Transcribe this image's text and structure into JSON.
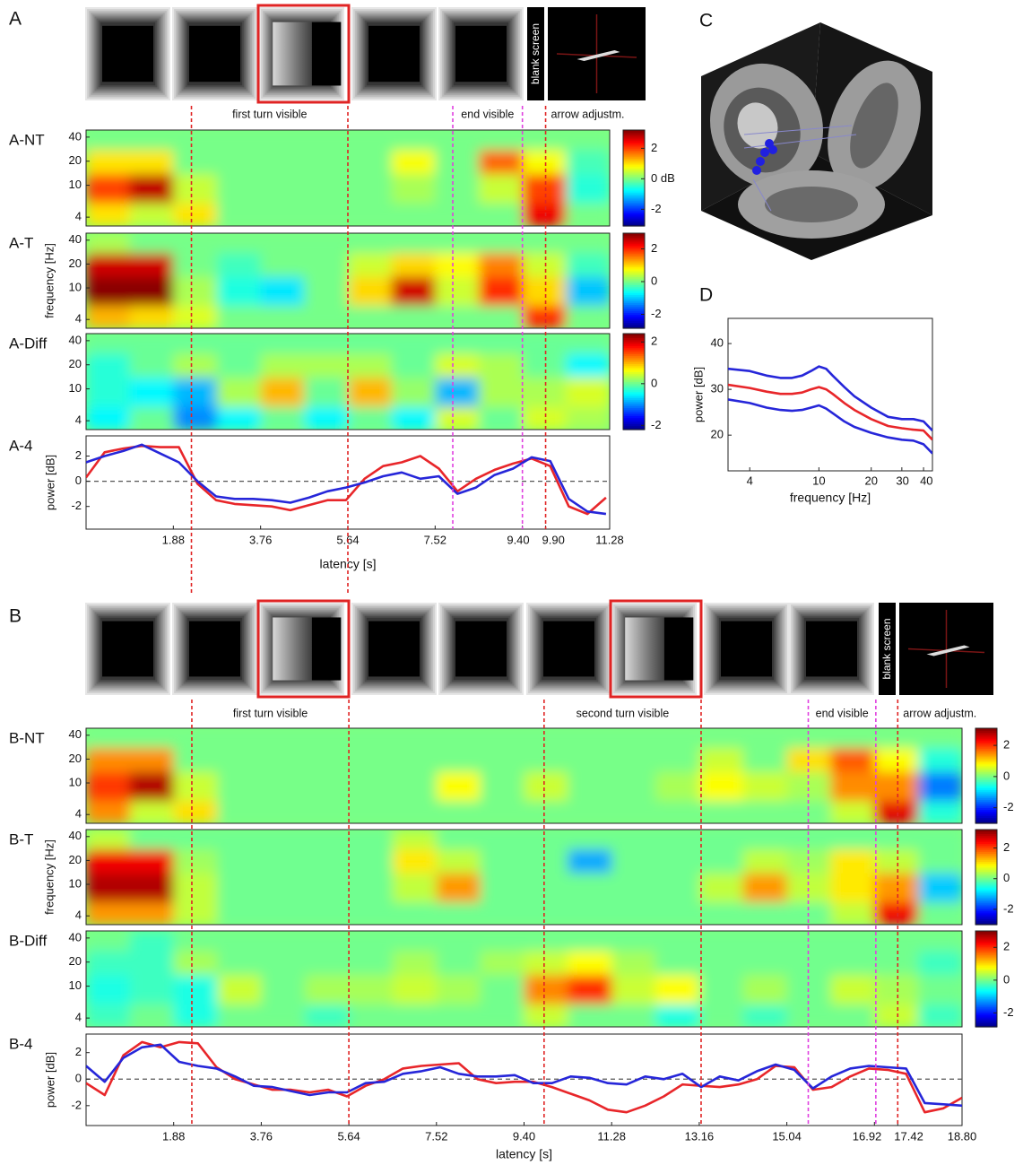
{
  "trials": [
    {
      "label": "A",
      "blank_label": "blank screen",
      "segments": [
        {
          "label": "first turn visible",
          "start": 2.27,
          "end": 5.64,
          "color": "#e02424"
        },
        {
          "label": "end visible",
          "start": 7.9,
          "end": 9.4,
          "color": "#e040e0"
        },
        {
          "label": "arrow adjustm.",
          "start": 9.9,
          "color": "#e02424"
        }
      ]
    },
    {
      "label": "B",
      "blank_label": "blank screen",
      "segments": [
        {
          "label": "first turn visible",
          "start": 2.27,
          "end": 5.64,
          "color": "#e02424"
        },
        {
          "label": "second turn visible",
          "start": 9.83,
          "end": 13.2,
          "color": "#e02424"
        },
        {
          "label": "end visible",
          "start": 15.5,
          "end": 16.95,
          "color": "#e040e0"
        },
        {
          "label": "arrow adjustm.",
          "start": 17.42,
          "color": "#e02424"
        }
      ]
    }
  ],
  "brain": {
    "label": "C"
  },
  "chart_data": [
    {
      "type": "heatmap",
      "label": "A-NT",
      "colormap": "jet",
      "xlim": [
        0,
        11.28
      ],
      "ylim": [
        3.1,
        49
      ],
      "ylog": true,
      "yticks": [
        4,
        10,
        20,
        40
      ],
      "clim": [
        -3.1,
        3.2
      ],
      "cticks": [
        -2,
        {
          "value": 0,
          "label": "0 dB"
        },
        2
      ],
      "x_edges": [
        0,
        0.94,
        1.88,
        2.82,
        3.76,
        4.7,
        5.64,
        6.58,
        7.52,
        8.46,
        9.4,
        10.34,
        11.28
      ],
      "y_edges": [
        3.1,
        6,
        14,
        28,
        49
      ],
      "z": [
        [
          1.0,
          0.5,
          1.0,
          0,
          0,
          0,
          0,
          0,
          0,
          0,
          2.5,
          0
        ],
        [
          2.0,
          2.8,
          0.5,
          0,
          0,
          0,
          0,
          0.3,
          0,
          0.5,
          2.0,
          -0.5
        ],
        [
          1.0,
          1.0,
          0,
          0,
          0,
          0,
          0,
          0.8,
          0,
          1.8,
          0.8,
          -0.3
        ],
        [
          0,
          0,
          0,
          0,
          0,
          0,
          0,
          0,
          0,
          0,
          0,
          0
        ]
      ]
    },
    {
      "type": "heatmap",
      "label": "A-T",
      "ylabel": "frequency [Hz]",
      "colormap": "jet",
      "xlim": [
        0,
        11.28
      ],
      "ylim": [
        3.1,
        49
      ],
      "ylog": true,
      "yticks": [
        4,
        10,
        20,
        40
      ],
      "clim": [
        -2.85,
        2.96
      ],
      "cticks": [
        -2,
        0,
        2
      ],
      "x_edges": [
        0,
        0.94,
        1.88,
        2.82,
        3.76,
        4.7,
        5.64,
        6.58,
        7.52,
        8.46,
        9.4,
        10.34,
        11.28
      ],
      "y_edges": [
        3.1,
        6,
        14,
        28,
        49
      ],
      "z": [
        [
          1.2,
          1.0,
          0.6,
          0,
          0,
          0,
          0,
          0,
          0,
          0,
          2.0,
          0
        ],
        [
          2.9,
          2.9,
          0.3,
          -0.5,
          -0.8,
          0,
          1.0,
          2.5,
          0.5,
          2.0,
          1.0,
          -1.0
        ],
        [
          2.5,
          2.5,
          0,
          -0.3,
          0,
          0,
          0.5,
          1.0,
          0.8,
          1.5,
          0.5,
          -0.3
        ],
        [
          0.3,
          0,
          0,
          0,
          0,
          0,
          0,
          0,
          0,
          0,
          0,
          0
        ]
      ]
    },
    {
      "type": "heatmap",
      "label": "A-Diff",
      "colormap": "jet",
      "xlim": [
        0,
        11.28
      ],
      "ylim": [
        3.1,
        49
      ],
      "ylog": true,
      "yticks": [
        4,
        10,
        20,
        40
      ],
      "clim": [
        -2.2,
        2.4
      ],
      "cticks": [
        -2,
        0,
        2
      ],
      "x_edges": [
        0,
        0.94,
        1.88,
        2.82,
        3.76,
        4.7,
        5.64,
        6.58,
        7.52,
        8.46,
        9.4,
        10.34,
        11.28
      ],
      "y_edges": [
        3.1,
        6,
        14,
        28,
        49
      ],
      "z": [
        [
          -0.5,
          0,
          -1.0,
          -0.5,
          0,
          -0.5,
          0,
          -0.5,
          0.5,
          0,
          0.5,
          0.3
        ],
        [
          -0.3,
          -0.5,
          -0.8,
          0.3,
          1.0,
          0,
          1.0,
          0.2,
          -0.8,
          0.3,
          0.3,
          0.5
        ],
        [
          -0.3,
          0,
          0.3,
          0,
          0.3,
          0.3,
          0.3,
          0,
          0.5,
          0.3,
          0,
          -0.5
        ],
        [
          0,
          0,
          0,
          0,
          0,
          0,
          0,
          0,
          0,
          0,
          0,
          0
        ]
      ]
    },
    {
      "type": "line",
      "label": "A-4",
      "xlabel": "latency [s]",
      "ylabel": "power [dB]",
      "xlim": [
        0,
        11.28
      ],
      "ylim": [
        -3.8,
        3.6
      ],
      "baseline": 0,
      "xticks": [
        1.88,
        3.76,
        5.64,
        7.52,
        {
          "value": 9.4,
          "label": "9.40"
        },
        {
          "value": 9.9,
          "label": "9.90"
        },
        11.28
      ],
      "yticks": [
        -2,
        0,
        2
      ],
      "x": [
        0,
        0.4,
        0.8,
        1.2,
        1.6,
        2,
        2.4,
        2.8,
        3.2,
        3.6,
        4,
        4.4,
        4.8,
        5.2,
        5.6,
        6,
        6.4,
        6.8,
        7.2,
        7.6,
        8,
        8.4,
        8.8,
        9.2,
        9.6,
        10,
        10.4,
        10.8,
        11.2
      ],
      "series": [
        {
          "color": "#e8262a",
          "values": [
            0.3,
            2.3,
            2.6,
            2.8,
            2.7,
            2.7,
            -0.2,
            -1.5,
            -1.8,
            -1.9,
            -2.0,
            -2.3,
            -1.9,
            -1.5,
            -1.5,
            0.2,
            1.2,
            1.5,
            2.0,
            1.0,
            -0.8,
            0.2,
            0.9,
            1.4,
            1.8,
            1.2,
            -2.0,
            -2.6,
            -1.3
          ]
        },
        {
          "color": "#2626d9",
          "values": [
            1.5,
            2.0,
            2.4,
            2.9,
            2.2,
            1.5,
            0.0,
            -1.2,
            -1.4,
            -1.4,
            -1.5,
            -1.7,
            -1.3,
            -0.8,
            -0.5,
            -0.1,
            0.4,
            0.7,
            0.2,
            0.4,
            -1.0,
            -0.5,
            0.5,
            1.0,
            1.9,
            1.6,
            -1.4,
            -2.4,
            -2.6
          ]
        }
      ]
    },
    {
      "type": "heatmap",
      "label": "B-NT",
      "colormap": "jet",
      "xlim": [
        0,
        18.8
      ],
      "ylim": [
        3.1,
        49
      ],
      "ylog": true,
      "yticks": [
        4,
        10,
        20,
        40
      ],
      "clim": [
        -3.0,
        3.1
      ],
      "cticks": [
        -2,
        0,
        2
      ],
      "x_edges": [
        0,
        0.94,
        1.88,
        2.82,
        3.76,
        4.7,
        5.64,
        6.58,
        7.52,
        8.46,
        9.4,
        10.34,
        11.28,
        12.22,
        13.16,
        14.1,
        15.04,
        15.98,
        16.92,
        17.86,
        18.8
      ],
      "y_edges": [
        3.1,
        6,
        14,
        28,
        49
      ],
      "z": [
        [
          1.5,
          0.5,
          1.0,
          0,
          0,
          0,
          0,
          0,
          0,
          0,
          0,
          0,
          0,
          0,
          0,
          0,
          0,
          0.5,
          2.5,
          -0.5
        ],
        [
          2.0,
          2.8,
          0.5,
          0,
          0,
          0,
          0,
          0,
          0.8,
          0,
          0.5,
          0,
          0,
          0.3,
          0.8,
          0.5,
          0.3,
          1.5,
          1.5,
          -1.5
        ],
        [
          1.5,
          1.5,
          0,
          0,
          0,
          0,
          0,
          0,
          0,
          0,
          0,
          0,
          0,
          0,
          0.5,
          0,
          1.0,
          1.8,
          0.8,
          -0.5
        ],
        [
          0,
          0,
          0,
          0,
          0,
          0,
          0,
          0,
          0,
          0,
          0,
          0,
          0,
          0,
          0,
          0,
          0,
          0,
          0,
          0
        ]
      ]
    },
    {
      "type": "heatmap",
      "label": "B-T",
      "ylabel": "frequency [Hz]",
      "colormap": "jet",
      "xlim": [
        0,
        18.8
      ],
      "ylim": [
        3.1,
        49
      ],
      "ylog": true,
      "yticks": [
        4,
        10,
        20,
        40
      ],
      "clim": [
        -3.0,
        3.2
      ],
      "cticks": [
        -2,
        0,
        2
      ],
      "x_edges": [
        0,
        0.94,
        1.88,
        2.82,
        3.76,
        4.7,
        5.64,
        6.58,
        7.52,
        8.46,
        9.4,
        10.34,
        11.28,
        12.22,
        13.16,
        14.1,
        15.04,
        15.98,
        16.92,
        17.86,
        18.8
      ],
      "y_edges": [
        3.1,
        6,
        14,
        28,
        49
      ],
      "z": [
        [
          1.5,
          1.5,
          0.5,
          0,
          0,
          0,
          0,
          0,
          0,
          0,
          0,
          0,
          0,
          0,
          0,
          0,
          0,
          0.5,
          2.5,
          0
        ],
        [
          2.9,
          2.9,
          0.5,
          0,
          0,
          0,
          0,
          0.5,
          1.5,
          0,
          0,
          0,
          0,
          0,
          0.5,
          1.5,
          0.5,
          1.0,
          1.5,
          -1.0
        ],
        [
          2.5,
          2.5,
          0.3,
          0,
          0,
          0,
          0,
          1.0,
          0.5,
          0,
          0,
          -1.2,
          0,
          0,
          0,
          0.5,
          0.3,
          1.0,
          0.5,
          0
        ],
        [
          0.5,
          0,
          0,
          0,
          0,
          0,
          0,
          0.5,
          0,
          0,
          0,
          0,
          0,
          0,
          0,
          0,
          0,
          0,
          0,
          0
        ]
      ]
    },
    {
      "type": "heatmap",
      "label": "B-Diff",
      "colormap": "jet",
      "xlim": [
        0,
        18.8
      ],
      "ylim": [
        3.1,
        49
      ],
      "ylog": true,
      "yticks": [
        4,
        10,
        20,
        40
      ],
      "clim": [
        -2.85,
        3.0
      ],
      "cticks": [
        -2,
        0,
        2
      ],
      "x_edges": [
        0,
        0.94,
        1.88,
        2.82,
        3.76,
        4.7,
        5.64,
        6.58,
        7.52,
        8.46,
        9.4,
        10.34,
        11.28,
        12.22,
        13.16,
        14.1,
        15.04,
        15.98,
        16.92,
        17.86,
        18.8
      ],
      "y_edges": [
        3.1,
        6,
        14,
        28,
        49
      ],
      "z": [
        [
          -0.3,
          0,
          -0.5,
          0,
          0,
          -0.3,
          0,
          0,
          0,
          0,
          0.5,
          0,
          0,
          -0.5,
          0,
          -0.3,
          0,
          0,
          0.5,
          -0.3
        ],
        [
          -0.5,
          -0.3,
          -0.5,
          0.5,
          0,
          0.3,
          0.3,
          0.5,
          0.3,
          0,
          1.5,
          2.0,
          0.5,
          0.8,
          0,
          0.3,
          0,
          0.5,
          0.3,
          0
        ],
        [
          -0.3,
          -0.3,
          0.3,
          0,
          0,
          0,
          0,
          0.3,
          0,
          0.3,
          0.5,
          0.8,
          0.3,
          0,
          0,
          0,
          0,
          0,
          0,
          -0.3
        ],
        [
          0,
          -0.3,
          0,
          0,
          0,
          0,
          0,
          0,
          0,
          0,
          0,
          0,
          0,
          0,
          0,
          0,
          0,
          0,
          0,
          0
        ]
      ]
    },
    {
      "type": "line",
      "label": "B-4",
      "xlabel": "latency [s]",
      "ylabel": "power [dB]",
      "xlim": [
        0,
        18.8
      ],
      "ylim": [
        -3.5,
        3.4
      ],
      "baseline": 0,
      "xticks": [
        1.88,
        3.76,
        5.64,
        7.52,
        {
          "value": 9.4,
          "label": "9.40"
        },
        11.28,
        13.16,
        15.04,
        16.92,
        17.42,
        {
          "value": 18.8,
          "label": "18.80"
        }
      ],
      "yticks": [
        -2,
        0,
        2
      ],
      "x": [
        0,
        0.4,
        0.8,
        1.2,
        1.6,
        2,
        2.4,
        2.8,
        3.2,
        3.6,
        4,
        4.4,
        4.8,
        5.2,
        5.6,
        6,
        6.4,
        6.8,
        7.2,
        7.6,
        8,
        8.4,
        8.8,
        9.2,
        9.6,
        10,
        10.4,
        10.8,
        11.2,
        11.6,
        12,
        12.4,
        12.8,
        13.2,
        13.6,
        14,
        14.4,
        14.8,
        15.2,
        15.6,
        16,
        16.4,
        16.8,
        17.2,
        17.6,
        18,
        18.4,
        18.8
      ],
      "series": [
        {
          "color": "#e8262a",
          "values": [
            -0.3,
            -1.2,
            1.8,
            2.8,
            2.4,
            2.8,
            2.7,
            0.9,
            0,
            -0.4,
            -0.8,
            -0.8,
            -1,
            -0.8,
            -1.3,
            -0.5,
            0,
            0.8,
            1,
            1.1,
            1.2,
            0,
            -0.3,
            -0.2,
            -0.2,
            -0.6,
            -1.1,
            -1.6,
            -2.3,
            -2.5,
            -2,
            -1.3,
            -0.4,
            -0.5,
            -0.6,
            -0.4,
            0,
            1,
            0.9,
            -0.8,
            -0.6,
            0.2,
            0.8,
            0.7,
            0.4,
            -2.5,
            -2.2,
            -1.4
          ]
        },
        {
          "color": "#2626d9",
          "values": [
            1,
            -0.2,
            1.6,
            2.4,
            2.6,
            1.3,
            1,
            0.8,
            0.2,
            -0.5,
            -0.6,
            -0.9,
            -1.2,
            -1,
            -1,
            -0.3,
            -0.2,
            0.4,
            0.6,
            0.9,
            0.4,
            0.2,
            0.2,
            0.3,
            -0.3,
            -0.3,
            0.2,
            0.1,
            -0.3,
            -0.4,
            0.2,
            0,
            0.4,
            -0.6,
            0.2,
            -0.1,
            0.6,
            1.1,
            0.7,
            -0.7,
            0.2,
            0.8,
            1,
            0.9,
            0.8,
            -1.8,
            -1.9,
            -2
          ]
        }
      ]
    },
    {
      "type": "line",
      "label": "D",
      "xlabel": "frequency [Hz]",
      "ylabel": "power [dB]",
      "xlim": [
        3,
        45
      ],
      "xlog": true,
      "ylim": [
        12.2,
        45.5
      ],
      "xticks": [
        4,
        10,
        20,
        30,
        40
      ],
      "yticks": [
        20,
        30,
        40
      ],
      "x": [
        3,
        4,
        5,
        6,
        7,
        8,
        9,
        10,
        11,
        12,
        14,
        16,
        20,
        25,
        30,
        35,
        40,
        45
      ],
      "series": [
        {
          "color": "#2626d9",
          "values": [
            34.5,
            34,
            33,
            32.5,
            32.5,
            33,
            34,
            35,
            34.5,
            33,
            30.5,
            28.5,
            26,
            24,
            23.5,
            23.5,
            23,
            21
          ]
        },
        {
          "color": "#e8262a",
          "values": [
            31,
            30.3,
            29.5,
            29,
            29,
            29.3,
            30,
            30.5,
            30,
            29,
            27,
            25.5,
            23.5,
            22,
            21.5,
            21.2,
            21,
            19
          ]
        },
        {
          "color": "#2626d9",
          "values": [
            27.8,
            27,
            26,
            25.5,
            25.3,
            25.5,
            26,
            26.5,
            25.8,
            24.8,
            23,
            21.8,
            20.5,
            19.5,
            19,
            18.8,
            18,
            16
          ]
        }
      ]
    }
  ]
}
